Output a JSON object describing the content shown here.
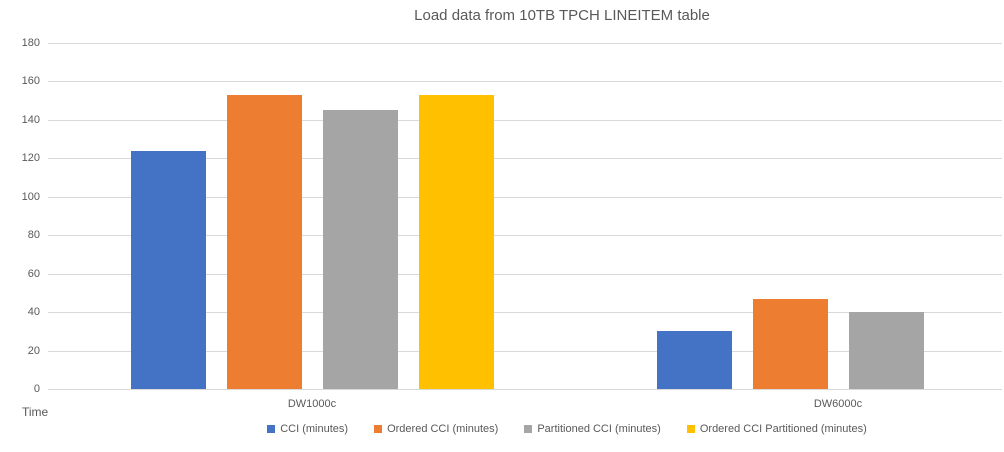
{
  "chart_data": {
    "type": "bar",
    "title": "Load data from 10TB TPCH LINEITEM table",
    "y_axis_title": "Time",
    "xlabel": "",
    "ylabel": "Time",
    "categories": [
      "DW1000c",
      "DW6000c"
    ],
    "series": [
      {
        "name": "CCI (minutes)",
        "color": "#4472C4",
        "values": [
          124,
          30
        ]
      },
      {
        "name": "Ordered CCI (minutes)",
        "color": "#ED7D31",
        "values": [
          153,
          47
        ]
      },
      {
        "name": "Partitioned CCI (minutes)",
        "color": "#A5A5A5",
        "values": [
          145,
          40
        ]
      },
      {
        "name": "Ordered CCI Partitioned (minutes)",
        "color": "#FFC000",
        "values": [
          153,
          0
        ]
      }
    ],
    "ylim": [
      0,
      180
    ],
    "yticks": [
      0,
      20,
      40,
      60,
      80,
      100,
      120,
      140,
      160,
      180
    ],
    "grid": true,
    "legend_position": "bottom"
  },
  "colors": {
    "gridline": "#d9d9d9",
    "text": "#595959",
    "background": "#ffffff"
  }
}
